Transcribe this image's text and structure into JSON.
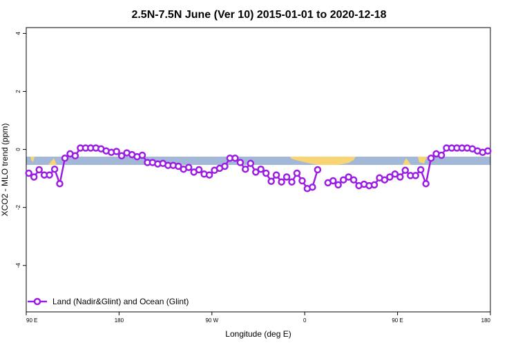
{
  "chart_data": {
    "type": "line",
    "title": "2.5N-7.5N June (Ver 10)   2015-01-01 to 2020-12-18",
    "xlabel": "Longitude (deg E)",
    "ylabel": "XCO2 - MLO trend (ppm)",
    "x_ticks": [
      "90 E",
      "180",
      "90 W",
      "0",
      "90 E",
      "180"
    ],
    "y_ticks": [
      "4",
      "2",
      "0",
      "-2",
      "-4"
    ],
    "y_tick_values": [
      4,
      2,
      0,
      -2,
      -4
    ],
    "ylim": [
      -5.6,
      4.2
    ],
    "x_units": "degrees from 90 E (0 to 450)",
    "xlim": [
      0,
      450
    ],
    "grid": false,
    "legend_position": "bottom-left",
    "background_map_colors": {
      "ocean": "#a3b8d8",
      "land": "#f7d474"
    },
    "series": [
      {
        "name": "Land (Nadir&Glint) and Ocean (Glint)",
        "color": "#9b1de3",
        "x": [
          2.5,
          7.5,
          12.5,
          17.5,
          22.5,
          27.5,
          32.5,
          37.5,
          42.5,
          47.5,
          52.5,
          57.5,
          62.5,
          67.5,
          72.5,
          77.5,
          82.5,
          87.5,
          92.5,
          97.5,
          102.5,
          107.5,
          112.5,
          117.5,
          122.5,
          127.5,
          132.5,
          137.5,
          142.5,
          147.5,
          152.5,
          157.5,
          162.5,
          167.5,
          172.5,
          177.5,
          182.5,
          187.5,
          192.5,
          197.5,
          202.5,
          207.5,
          212.5,
          217.5,
          222.5,
          227.5,
          232.5,
          237.5,
          242.5,
          247.5,
          252.5,
          257.5,
          262.5,
          267.5,
          272.5,
          277.5,
          282.5,
          287.5,
          292.5,
          297.5,
          302.5,
          307.5,
          312.5,
          317.5,
          322.5,
          327.5,
          332.5,
          337.5,
          342.5,
          347.5,
          352.5,
          357.5,
          362.5,
          367.5,
          372.5,
          377.5,
          382.5,
          387.5,
          392.5,
          397.5,
          402.5,
          407.5,
          412.5,
          417.5,
          422.5,
          427.5,
          432.5,
          437.5,
          442.5,
          447.5
        ],
        "y": [
          -0.82,
          -0.95,
          -0.7,
          -0.88,
          -0.88,
          -0.68,
          -1.18,
          -0.3,
          -0.15,
          -0.22,
          0.05,
          0.05,
          0.05,
          0.05,
          0.02,
          -0.05,
          -0.1,
          -0.07,
          -0.22,
          -0.12,
          -0.18,
          -0.25,
          -0.2,
          -0.45,
          -0.45,
          -0.5,
          -0.48,
          -0.55,
          -0.55,
          -0.58,
          -0.68,
          -0.62,
          -0.78,
          -0.7,
          -0.85,
          -0.88,
          -0.72,
          -0.65,
          -0.58,
          -0.3,
          -0.3,
          -0.45,
          -0.68,
          -0.48,
          -0.78,
          -0.68,
          -0.82,
          -1.1,
          -0.88,
          -1.12,
          -0.95,
          -1.12,
          -0.82,
          -1.08,
          -1.35,
          -1.3,
          -0.7,
          null,
          -1.15,
          -1.08,
          -1.22,
          -1.05,
          -0.95,
          -1.05,
          -1.25,
          -1.2,
          -1.25,
          -1.22,
          -0.98,
          -1.05,
          -0.95,
          -0.85,
          -0.95,
          -0.72,
          -0.9,
          -0.9,
          -0.7,
          -1.18,
          -0.3,
          -0.15,
          -0.2,
          0.05,
          0.05,
          0.05,
          0.05,
          0.05,
          0.02,
          -0.05,
          -0.1,
          -0.05
        ]
      }
    ]
  }
}
